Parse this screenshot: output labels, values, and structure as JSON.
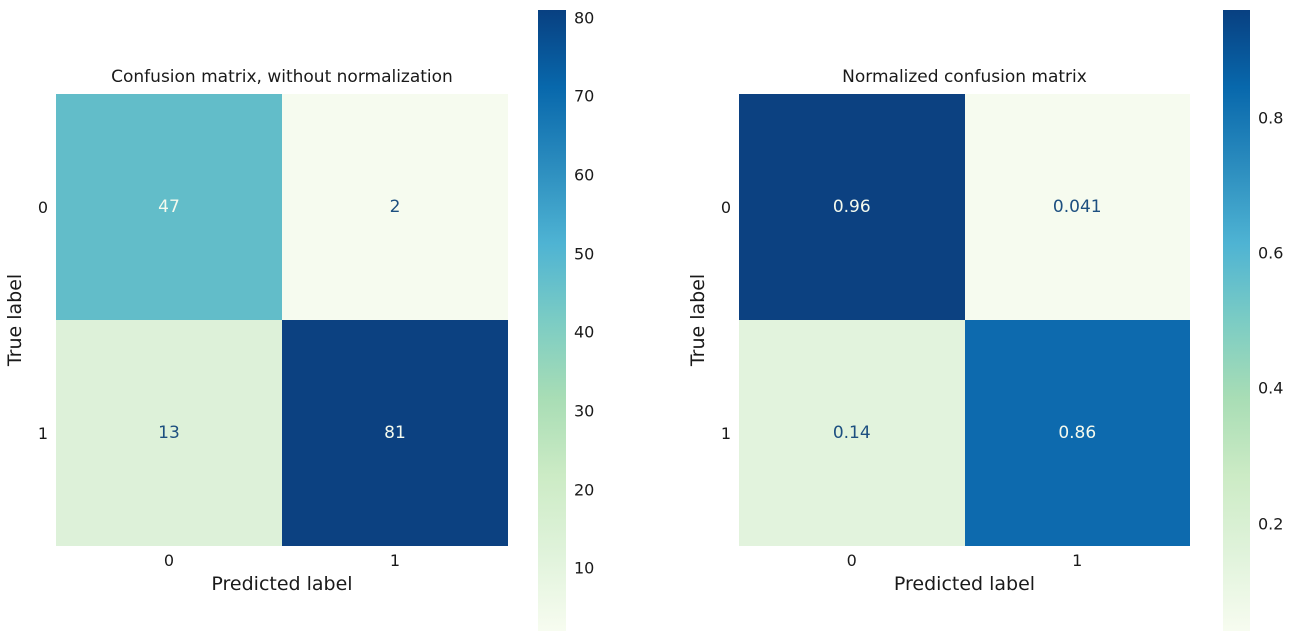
{
  "figure": {
    "background": "#ffffff"
  },
  "colormap": {
    "name": "GnBu",
    "stops_top_to_bottom": [
      "#084081",
      "#0868ac",
      "#2b8cbe",
      "#4eb3d3",
      "#7bccc4",
      "#a8ddb5",
      "#ccebc5",
      "#e0f3db",
      "#f7fcf0"
    ]
  },
  "panels": [
    {
      "title": "Confusion matrix, without normalization",
      "xlabel": "Predicted label",
      "ylabel": "True label",
      "xticks": [
        "0",
        "1"
      ],
      "yticks": [
        "0",
        "1"
      ],
      "cells": [
        {
          "value": "47",
          "bg": "#62bdc9",
          "fg": "#f4faee"
        },
        {
          "value": "2",
          "bg": "#f6fbef",
          "fg": "#1d4f80"
        },
        {
          "value": "13",
          "bg": "#ddf1d9",
          "fg": "#1d4f80"
        },
        {
          "value": "81",
          "bg": "#0c4181",
          "fg": "#f4faee"
        }
      ],
      "colorbar": {
        "min": 2,
        "max": 81,
        "ticks": [
          {
            "label": "80",
            "value": 80
          },
          {
            "label": "70",
            "value": 70
          },
          {
            "label": "60",
            "value": 60
          },
          {
            "label": "50",
            "value": 50
          },
          {
            "label": "40",
            "value": 40
          },
          {
            "label": "30",
            "value": 30
          },
          {
            "label": "20",
            "value": 20
          },
          {
            "label": "10",
            "value": 10
          }
        ]
      }
    },
    {
      "title": "Normalized confusion matrix",
      "xlabel": "Predicted label",
      "ylabel": "True label",
      "xticks": [
        "0",
        "1"
      ],
      "yticks": [
        "0",
        "1"
      ],
      "cells": [
        {
          "value": "0.96",
          "bg": "#0c4181",
          "fg": "#f4faee"
        },
        {
          "value": "0.041",
          "bg": "#f6fbef",
          "fg": "#1d4f80"
        },
        {
          "value": "0.14",
          "bg": "#e2f3dd",
          "fg": "#1d4f80"
        },
        {
          "value": "0.86",
          "bg": "#0d6aae",
          "fg": "#f4faee"
        }
      ],
      "colorbar": {
        "min": 0.041,
        "max": 0.96,
        "ticks": [
          {
            "label": "0.8",
            "value": 0.8
          },
          {
            "label": "0.6",
            "value": 0.6
          },
          {
            "label": "0.4",
            "value": 0.4
          },
          {
            "label": "0.2",
            "value": 0.2
          }
        ]
      }
    }
  ],
  "chart_data": [
    {
      "type": "heatmap",
      "title": "Confusion matrix, without normalization",
      "xlabel": "Predicted label",
      "ylabel": "True label",
      "x_tick_labels": [
        "0",
        "1"
      ],
      "y_tick_labels": [
        "0",
        "1"
      ],
      "matrix": [
        [
          47,
          2
        ],
        [
          13,
          81
        ]
      ],
      "colormap": "GnBu",
      "colorbar_range": [
        2,
        81
      ],
      "colorbar_ticks": [
        10,
        20,
        30,
        40,
        50,
        60,
        70,
        80
      ],
      "grid": false,
      "legend_position": "colorbar-right"
    },
    {
      "type": "heatmap",
      "title": "Normalized confusion matrix",
      "xlabel": "Predicted label",
      "ylabel": "True label",
      "x_tick_labels": [
        "0",
        "1"
      ],
      "y_tick_labels": [
        "0",
        "1"
      ],
      "matrix": [
        [
          0.96,
          0.041
        ],
        [
          0.14,
          0.86
        ]
      ],
      "colormap": "GnBu",
      "colorbar_range": [
        0.041,
        0.96
      ],
      "colorbar_ticks": [
        0.2,
        0.4,
        0.6,
        0.8
      ],
      "grid": false,
      "legend_position": "colorbar-right"
    }
  ]
}
